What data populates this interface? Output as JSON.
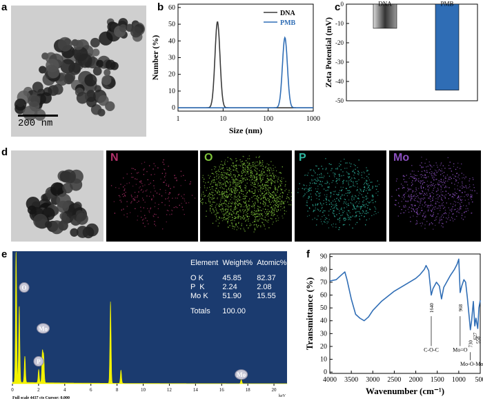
{
  "panels": {
    "a": {
      "letter": "a",
      "scale_bar": "200 nm"
    },
    "b": {
      "letter": "b"
    },
    "c": {
      "letter": "c"
    },
    "d": {
      "letter": "d",
      "maps": [
        {
          "label": "N",
          "color": "#b0306a"
        },
        {
          "label": "O",
          "color": "#7ec23a"
        },
        {
          "label": "P",
          "color": "#2fb6a0"
        },
        {
          "label": "Mo",
          "color": "#8a4fbf"
        }
      ]
    },
    "e": {
      "letter": "e"
    },
    "f": {
      "letter": "f"
    }
  },
  "chart_data": [
    {
      "id": "b",
      "type": "line",
      "xlabel": "Size (nm)",
      "ylabel": "Number (%)",
      "x_scale": "log",
      "xlim": [
        1,
        1000
      ],
      "ylim": [
        -2,
        62
      ],
      "xticks": [
        "1",
        "10",
        "100",
        "1000"
      ],
      "yticks": [
        0,
        10,
        20,
        30,
        40,
        50,
        60
      ],
      "series": [
        {
          "name": "DNA",
          "color": "#3a3a3a",
          "peak_x": 7.5,
          "peak_y": 51.5,
          "width_log": 0.055
        },
        {
          "name": "PMB",
          "color": "#2f6db5",
          "peak_x": 235,
          "peak_y": 42,
          "width_log": 0.055
        }
      ],
      "legend": "top-right"
    },
    {
      "id": "c",
      "type": "bar",
      "ylabel": "Zeta Potential (mV)",
      "categories": [
        "DNA",
        "PMB"
      ],
      "values": [
        -12.5,
        -44.5
      ],
      "colors": [
        "#777777",
        "#2f6db5"
      ],
      "ylim": [
        -50,
        0
      ],
      "yticks": [
        0,
        -10,
        -20,
        -30,
        -40,
        -50
      ]
    },
    {
      "id": "e",
      "type": "line",
      "x_unit": "keV",
      "xlim": [
        0,
        21
      ],
      "xticks": [
        0,
        2,
        4,
        6,
        8,
        10,
        12,
        14,
        16,
        18,
        20
      ],
      "footer": "Full scale 4437 cts Cursor: 0.000",
      "peaks": [
        {
          "x": 0.28,
          "h": 1.0
        },
        {
          "x": 0.52,
          "h": 0.58
        },
        {
          "x": 0.95,
          "h": 0.2
        },
        {
          "x": 2.01,
          "h": 0.1
        },
        {
          "x": 2.29,
          "h": 0.23
        },
        {
          "x": 2.39,
          "h": 0.2
        },
        {
          "x": 7.5,
          "h": 0.62
        },
        {
          "x": 8.3,
          "h": 0.1
        },
        {
          "x": 17.5,
          "h": 0.03
        }
      ],
      "peak_labels": [
        {
          "label": "O",
          "x": 0.9,
          "level": 0.73
        },
        {
          "label": "Mo",
          "x": 2.35,
          "level": 0.42
        },
        {
          "label": "P",
          "x": 2.0,
          "level": 0.17
        },
        {
          "label": "Mo",
          "x": 17.5,
          "level": 0.07
        }
      ],
      "table": {
        "headers": [
          "Element",
          "Weight%",
          "Atomic%"
        ],
        "rows": [
          [
            "O K",
            "45.85",
            "82.37"
          ],
          [
            "P  K",
            "2.24",
            "2.08"
          ],
          [
            "Mo K",
            "51.90",
            "15.55"
          ]
        ],
        "totals_label": "Totals",
        "totals_value": "100.00"
      },
      "bg_color": "#1b3b6f",
      "peak_color": "#f2f200"
    },
    {
      "id": "f",
      "type": "line",
      "xlabel": "Wavenumber (cm⁻¹)",
      "ylabel": "Transmittance (%)",
      "xlim": [
        4000,
        500
      ],
      "ylim": [
        -1,
        92
      ],
      "xticks": [
        4000,
        3500,
        3000,
        2500,
        2000,
        1500,
        1000,
        500
      ],
      "yticks": [
        0,
        10,
        20,
        30,
        40,
        50,
        60,
        70,
        80,
        90
      ],
      "points": [
        [
          4000,
          71
        ],
        [
          3850,
          72
        ],
        [
          3720,
          76
        ],
        [
          3650,
          78
        ],
        [
          3600,
          72
        ],
        [
          3500,
          57
        ],
        [
          3400,
          45
        ],
        [
          3300,
          42
        ],
        [
          3200,
          40
        ],
        [
          3100,
          43
        ],
        [
          3000,
          48
        ],
        [
          2800,
          55
        ],
        [
          2500,
          63
        ],
        [
          2200,
          69
        ],
        [
          2000,
          73
        ],
        [
          1900,
          76
        ],
        [
          1800,
          80
        ],
        [
          1760,
          83
        ],
        [
          1700,
          79
        ],
        [
          1640,
          60
        ],
        [
          1600,
          65
        ],
        [
          1520,
          70
        ],
        [
          1450,
          67
        ],
        [
          1400,
          57
        ],
        [
          1350,
          66
        ],
        [
          1200,
          75
        ],
        [
          1100,
          80
        ],
        [
          1040,
          84
        ],
        [
          1000,
          88
        ],
        [
          968,
          62
        ],
        [
          930,
          67
        ],
        [
          880,
          72
        ],
        [
          840,
          70
        ],
        [
          800,
          58
        ],
        [
          760,
          44
        ],
        [
          730,
          33
        ],
        [
          700,
          40
        ],
        [
          660,
          55
        ],
        [
          627,
          36
        ],
        [
          600,
          42
        ],
        [
          558,
          34
        ],
        [
          530,
          50
        ],
        [
          500,
          56
        ]
      ],
      "annotations": [
        {
          "wavenumber": "1640",
          "group": "C-O-C",
          "x": 1640,
          "y": 60
        },
        {
          "wavenumber": "968",
          "group": "Mo=O",
          "x": 968,
          "y": 62
        },
        {
          "wavenumber": "730",
          "group": "Mo-O-Mo",
          "x": 730,
          "y": 33
        },
        {
          "wavenumber": "627",
          "group": "",
          "x": 627,
          "y": 36
        },
        {
          "wavenumber": "558",
          "group": "",
          "x": 558,
          "y": 34
        }
      ]
    }
  ]
}
